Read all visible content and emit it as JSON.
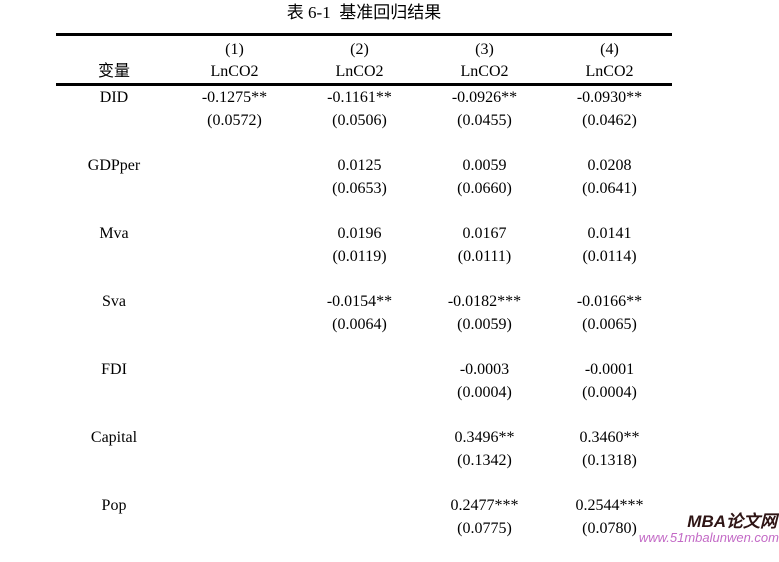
{
  "page": {
    "title": "表 6-1  基准回归结果"
  },
  "table": {
    "header": {
      "col_label": "变量",
      "model_numbers": [
        "(1)",
        "(2)",
        "(3)",
        "(4)"
      ],
      "dep_vars": [
        "LnCO2",
        "LnCO2",
        "LnCO2",
        "LnCO2"
      ]
    },
    "rows": [
      {
        "var": "DID",
        "coef": [
          "-0.1275**",
          "-0.1161**",
          "-0.0926**",
          "-0.0930**"
        ],
        "se": [
          "(0.0572)",
          "(0.0506)",
          "(0.0455)",
          "(0.0462)"
        ]
      },
      {
        "var": "GDPper",
        "coef": [
          "",
          "0.0125",
          "0.0059",
          "0.0208"
        ],
        "se": [
          "",
          "(0.0653)",
          "(0.0660)",
          "(0.0641)"
        ]
      },
      {
        "var": "Mva",
        "coef": [
          "",
          "0.0196",
          "0.0167",
          "0.0141"
        ],
        "se": [
          "",
          "(0.0119)",
          "(0.0111)",
          "(0.0114)"
        ]
      },
      {
        "var": "Sva",
        "coef": [
          "",
          "-0.0154**",
          "-0.0182***",
          "-0.0166**"
        ],
        "se": [
          "",
          "(0.0064)",
          "(0.0059)",
          "(0.0065)"
        ]
      },
      {
        "var": "FDI",
        "coef": [
          "",
          "",
          "-0.0003",
          "-0.0001"
        ],
        "se": [
          "",
          "",
          "(0.0004)",
          "(0.0004)"
        ]
      },
      {
        "var": "Capital",
        "coef": [
          "",
          "",
          "0.3496**",
          "0.3460**"
        ],
        "se": [
          "",
          "",
          "(0.1342)",
          "(0.1318)"
        ]
      },
      {
        "var": "Pop",
        "coef": [
          "",
          "",
          "0.2477***",
          "0.2544***"
        ],
        "se": [
          "",
          "",
          "(0.0775)",
          "(0.0780)"
        ]
      }
    ]
  },
  "watermark": {
    "brand": "MBA论文网",
    "url": "www.51mbalunwen.com",
    "brand_color": "#2e1414",
    "url_color": "#c36ac6"
  }
}
